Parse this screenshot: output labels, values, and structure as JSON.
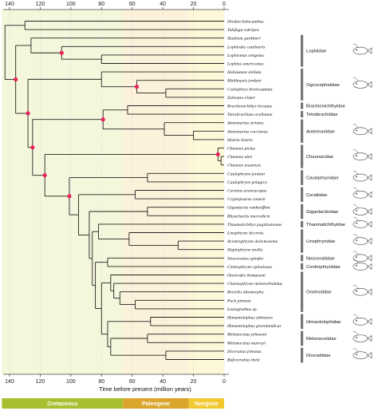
{
  "axis": {
    "ticks": [
      "140",
      "120",
      "100",
      "80",
      "60",
      "40",
      "20",
      "0"
    ],
    "tick_values": [
      140,
      120,
      100,
      80,
      60,
      40,
      20,
      0
    ],
    "title": "Time before present (million years)",
    "range": [
      145,
      0
    ]
  },
  "eras": [
    {
      "name": "Cretaceous",
      "start": 145,
      "end": 66,
      "color": "#a8c030",
      "band": "#f5f7dc"
    },
    {
      "name": "Paleogene",
      "start": 66,
      "end": 23,
      "color": "#d9a52a",
      "band": "#fcf1da"
    },
    {
      "name": "Neogene",
      "start": 23,
      "end": 0,
      "color": "#f2c830",
      "band": "#fdf8d8"
    }
  ],
  "taxa": [
    "Diodon holocanthus",
    "Takifugu rubripes",
    "Sladenia gardineri",
    "Lophiodes caulinaris",
    "Lophiomus setigelus",
    "Lophius americanus",
    "Halieutaea stellata",
    "Malthopsis jordani",
    "Coelophrys brevicaudata",
    "Zalieutes elater",
    "Brachionichthys hirsutus",
    "Tetrabrachium ocellatum",
    "Antennarius striatus",
    "Antennarius coccineus",
    "Histrio histrio",
    "Chaunax pictus",
    "Chaunax abei",
    "Chaunax tosaensis",
    "Caulophryne jordani",
    "Caulophryne pelagica",
    "Ceratias uranoscopus",
    "Cryptopsaras couesii",
    "Gigantactis vanhoeffeni",
    "Rhynchactis macrothrix",
    "Thaumatichthys pagidostomus",
    "Linophryne bicornis",
    "Acentrophryne dolichonema",
    "Haplophryne mollis",
    "Neoceratias spinifer",
    "Centrophryne spinulosus",
    "Oneirodes thompsoni",
    "Chaenophryne melanorhabdus",
    "Bertella idiomorpha",
    "Puck pinnata",
    "Lasiognathus sp.",
    "Himantolophus albinares",
    "Himantolophus groenlandicus",
    "Melanocetus johnsoni",
    "Melanocetus murrayi",
    "Diceratias pileatus",
    "Bufoceratias thele"
  ],
  "families": [
    {
      "name": "Lophiidae",
      "from": 2,
      "to": 5
    },
    {
      "name": "Ogcocephalidae",
      "from": 6,
      "to": 9
    },
    {
      "name": "Brachionichthyidae",
      "from": 10,
      "to": 10
    },
    {
      "name": "Tetrabrachiidae",
      "from": 11,
      "to": 11
    },
    {
      "name": "Antennariidae",
      "from": 12,
      "to": 14
    },
    {
      "name": "Chaunacidae",
      "from": 15,
      "to": 17
    },
    {
      "name": "Caulophrynidae",
      "from": 18,
      "to": 19
    },
    {
      "name": "Ceratiidae",
      "from": 20,
      "to": 21
    },
    {
      "name": "Gigantactinidae",
      "from": 22,
      "to": 23
    },
    {
      "name": "Thaumatichthyidae",
      "from": 24,
      "to": 24
    },
    {
      "name": "Linophrynidae",
      "from": 25,
      "to": 27
    },
    {
      "name": "Neoceratiidae",
      "from": 28,
      "to": 28
    },
    {
      "name": "Centrophrynidae",
      "from": 29,
      "to": 29
    },
    {
      "name": "Oneirodidae",
      "from": 30,
      "to": 34
    },
    {
      "name": "Himantolophidae",
      "from": 35,
      "to": 36
    },
    {
      "name": "Melanocetidae",
      "from": 37,
      "to": 38
    },
    {
      "name": "Diceratiidae",
      "from": 39,
      "to": 40
    }
  ],
  "tree": {
    "age": 143,
    "children": [
      {
        "age": 130,
        "children": [
          {
            "leaf": 0
          },
          {
            "leaf": 1
          }
        ]
      },
      {
        "age": 136,
        "cal": true,
        "children": [
          {
            "age": 126,
            "children": [
              {
                "leaf": 2
              },
              {
                "age": 106,
                "cal": true,
                "children": [
                  {
                    "leaf": 3
                  },
                  {
                    "age": 80,
                    "children": [
                      {
                        "leaf": 4
                      },
                      {
                        "leaf": 5
                      }
                    ]
                  }
                ]
              }
            ]
          },
          {
            "age": 128,
            "cal": true,
            "children": [
              {
                "age": 80,
                "children": [
                  {
                    "leaf": 6
                  },
                  {
                    "age": 57,
                    "cal": true,
                    "children": [
                      {
                        "leaf": 7
                      },
                      {
                        "age": 38,
                        "children": [
                          {
                            "leaf": 8
                          },
                          {
                            "leaf": 9
                          }
                        ]
                      }
                    ]
                  }
                ]
              },
              {
                "age": 125,
                "cal": true,
                "children": [
                  {
                    "age": 79,
                    "cal": true,
                    "children": [
                      {
                        "age": 63,
                        "children": [
                          {
                            "leaf": 10
                          },
                          {
                            "leaf": 11
                          }
                        ]
                      },
                      {
                        "age": 39,
                        "children": [
                          {
                            "leaf": 12
                          },
                          {
                            "age": 20,
                            "children": [
                              {
                                "leaf": 13
                              },
                              {
                                "leaf": 14
                              }
                            ]
                          }
                        ]
                      }
                    ]
                  },
                  {
                    "age": 117,
                    "cal": true,
                    "children": [
                      {
                        "age": 4,
                        "cal": true,
                        "children": [
                          {
                            "leaf": 15
                          },
                          {
                            "age": 2,
                            "children": [
                              {
                                "leaf": 16
                              },
                              {
                                "leaf": 17
                              }
                            ]
                          }
                        ]
                      },
                      {
                        "age": 101,
                        "cal": true,
                        "children": [
                          {
                            "age": 50,
                            "children": [
                              {
                                "leaf": 18
                              },
                              {
                                "leaf": 19
                              }
                            ]
                          },
                          {
                            "age": 95,
                            "children": [
                              {
                                "age": 58,
                                "children": [
                                  {
                                    "leaf": 20
                                  },
                                  {
                                    "leaf": 21
                                  }
                                ]
                              },
                              {
                                "age": 88,
                                "children": [
                                  {
                                    "age": 50,
                                    "children": [
                                      {
                                        "leaf": 22
                                      },
                                      {
                                        "leaf": 23
                                      }
                                    ]
                                  },
                                  {
                                    "age": 86,
                                    "children": [
                                      {
                                        "age": 82,
                                        "children": [
                                          {
                                            "leaf": 24
                                          },
                                          {
                                            "age": 62,
                                            "children": [
                                              {
                                                "leaf": 25
                                              },
                                              {
                                                "age": 30,
                                                "children": [
                                                  {
                                                    "leaf": 26
                                                  },
                                                  {
                                                    "leaf": 27
                                                  }
                                                ]
                                              }
                                            ]
                                          }
                                        ]
                                      },
                                      {
                                        "age": 84,
                                        "children": [
                                          {
                                            "age": 76,
                                            "children": [
                                              {
                                                "leaf": 28
                                              },
                                              {
                                                "leaf": 29
                                              }
                                            ]
                                          },
                                          {
                                            "age": 80,
                                            "children": [
                                              {
                                                "age": 74,
                                                "children": [
                                                  {
                                                    "leaf": 30
                                                  },
                                                  {
                                                    "age": 72,
                                                    "children": [
                                                      {
                                                        "leaf": 31
                                                      },
                                                      {
                                                        "age": 68,
                                                        "children": [
                                                          {
                                                            "leaf": 32
                                                          },
                                                          {
                                                            "age": 58,
                                                            "children": [
                                                              {
                                                                "leaf": 33
                                                              },
                                                              {
                                                                "leaf": 34
                                                              }
                                                            ]
                                                          }
                                                        ]
                                                      }
                                                    ]
                                                  }
                                                ]
                                              },
                                              {
                                                "age": 76,
                                                "children": [
                                                  {
                                                    "age": 48,
                                                    "children": [
                                                      {
                                                        "leaf": 35
                                                      },
                                                      {
                                                        "leaf": 36
                                                      }
                                                    ]
                                                  },
                                                  {
                                                    "age": 74,
                                                    "children": [
                                                      {
                                                        "age": 50,
                                                        "children": [
                                                          {
                                                            "leaf": 37
                                                          },
                                                          {
                                                            "leaf": 38
                                                          }
                                                        ]
                                                      },
                                                      {
                                                        "age": 38,
                                                        "children": [
                                                          {
                                                            "leaf": 39
                                                          },
                                                          {
                                                            "leaf": 40
                                                          }
                                                        ]
                                                      }
                                                    ]
                                                  }
                                                ]
                                              }
                                            ]
                                          }
                                        ]
                                      }
                                    ]
                                  }
                                ]
                              }
                            ]
                          }
                        ]
                      }
                    ]
                  }
                ]
              }
            ]
          }
        ]
      }
    ]
  },
  "colors": {
    "branch": "#222222",
    "calibration": "#e8245a",
    "family_bar": "#777777",
    "grid": "#d8d8d8"
  },
  "fish_icons": [
    "lophiid-icon",
    "ogcocephalid-icon",
    "antennariid-icon",
    "chaunacid-icon",
    "caulophrynid-icon",
    "ceratiid-icon",
    "gigantactinid-icon",
    "thaumatichthyid-icon",
    "linophrynid-icon",
    "neoceratiid-icon",
    "centrophrynid-icon",
    "oneirodid-icon",
    "himantolophid-icon",
    "melanocetid-icon",
    "diceratiid-icon"
  ]
}
